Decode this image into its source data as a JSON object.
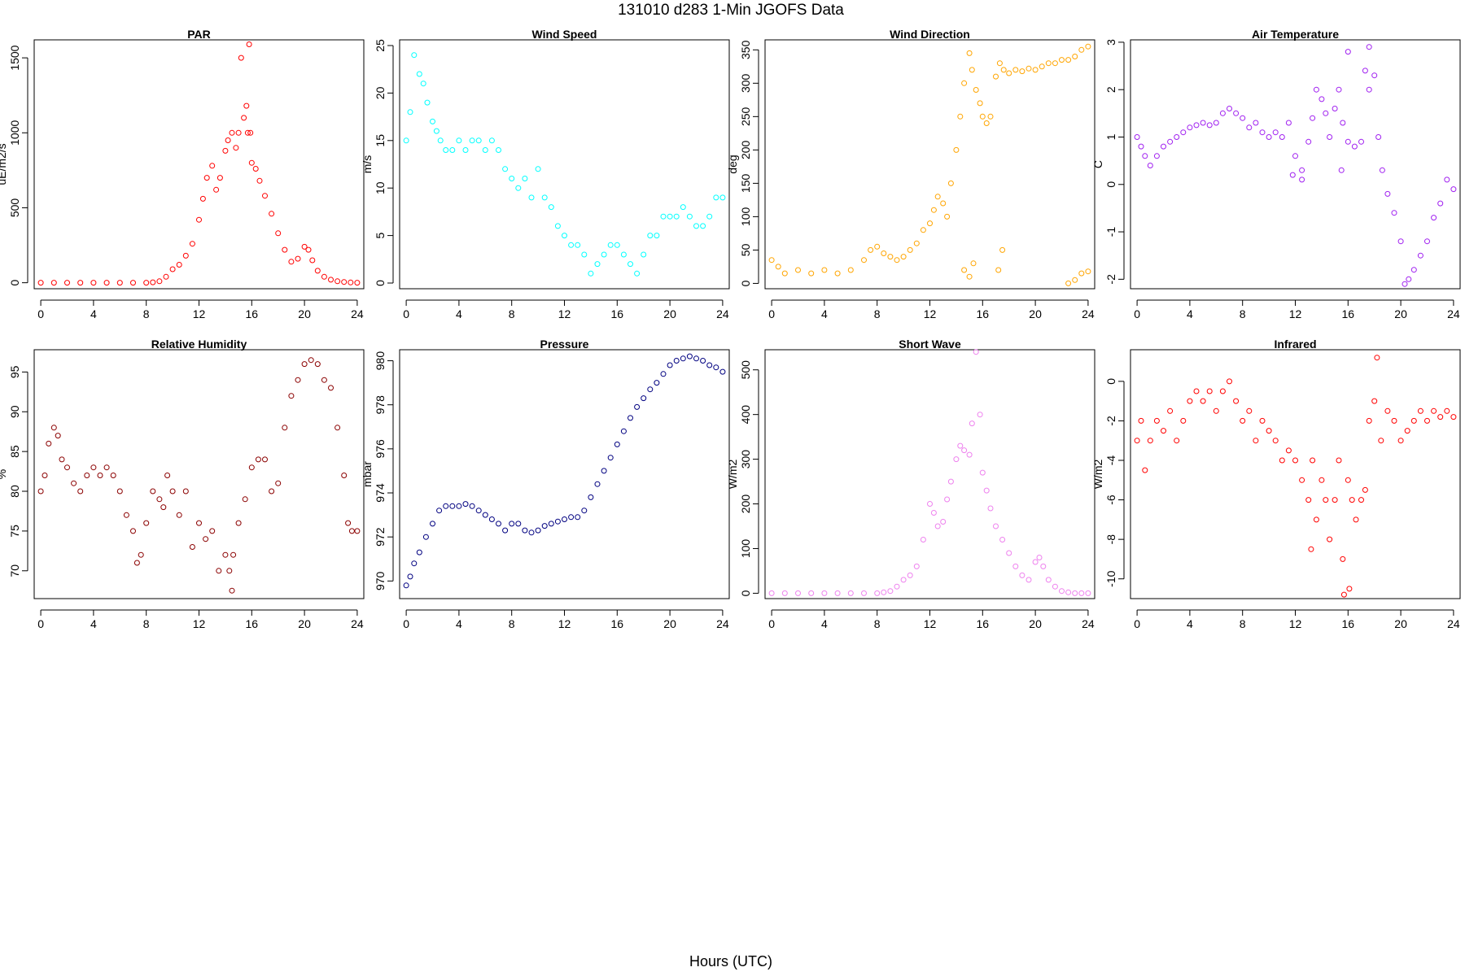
{
  "figure": {
    "title": "131010   d283   1-Min  JGOFS Data",
    "xlabel": "Hours (UTC)"
  },
  "chart_data": [
    {
      "type": "scatter",
      "title": "PAR",
      "xlabel": "",
      "ylabel": "uE/m2/s",
      "color": "#ff0000",
      "xlim": [
        -0.5,
        24.5
      ],
      "ylim": [
        -40,
        1620
      ],
      "xticks": [
        0,
        4,
        8,
        12,
        16,
        20,
        24
      ],
      "yticks": [
        0,
        500,
        1000,
        1500
      ],
      "x": [
        0,
        1,
        2,
        3,
        4,
        5,
        6,
        7,
        8,
        8.5,
        9,
        9.5,
        10,
        10.5,
        11,
        11.5,
        12,
        12.3,
        12.6,
        13,
        13.3,
        13.6,
        14,
        14.2,
        14.5,
        14.8,
        15,
        15.2,
        15.4,
        15.6,
        15.7,
        15.8,
        15.9,
        16,
        16.3,
        16.6,
        17,
        17.5,
        18,
        18.5,
        19,
        19.5,
        20,
        20.3,
        20.6,
        21,
        21.5,
        22,
        22.5,
        23,
        23.5,
        24
      ],
      "y": [
        0,
        0,
        0,
        0,
        0,
        0,
        0,
        0,
        0,
        3,
        10,
        40,
        90,
        120,
        180,
        260,
        420,
        560,
        700,
        780,
        620,
        700,
        880,
        950,
        1000,
        900,
        1000,
        1500,
        1100,
        1180,
        1000,
        1590,
        1000,
        800,
        760,
        680,
        580,
        460,
        330,
        220,
        140,
        160,
        240,
        220,
        150,
        80,
        40,
        20,
        10,
        5,
        2,
        0
      ]
    },
    {
      "type": "scatter",
      "title": "Wind Speed",
      "xlabel": "",
      "ylabel": "m/s",
      "color": "#00ffff",
      "xlim": [
        -0.5,
        24.5
      ],
      "ylim": [
        -0.6,
        25.6
      ],
      "xticks": [
        0,
        4,
        8,
        12,
        16,
        20,
        24
      ],
      "yticks": [
        0,
        5,
        10,
        15,
        20,
        25
      ],
      "x": [
        0,
        0.3,
        0.6,
        1,
        1.3,
        1.6,
        2,
        2.3,
        2.6,
        3,
        3.5,
        4,
        4.5,
        5,
        5.5,
        6,
        6.5,
        7,
        7.5,
        8,
        8.5,
        9,
        9.5,
        10,
        10.5,
        11,
        11.5,
        12,
        12.5,
        13,
        13.5,
        14,
        14.5,
        15,
        15.5,
        16,
        16.5,
        17,
        17.5,
        18,
        18.5,
        19,
        19.5,
        20,
        20.5,
        21,
        21.5,
        22,
        22.5,
        23,
        23.5,
        24
      ],
      "y": [
        15,
        18,
        24,
        22,
        21,
        19,
        17,
        16,
        15,
        14,
        14,
        15,
        14,
        15,
        15,
        14,
        15,
        14,
        12,
        11,
        10,
        11,
        9,
        12,
        9,
        8,
        6,
        5,
        4,
        4,
        3,
        1,
        2,
        3,
        4,
        4,
        3,
        2,
        1,
        3,
        5,
        5,
        7,
        7,
        7,
        8,
        7,
        6,
        6,
        7,
        9,
        9
      ]
    },
    {
      "type": "scatter",
      "title": "Wind Direction",
      "xlabel": "",
      "ylabel": "deg",
      "color": "#ffa500",
      "xlim": [
        -0.5,
        24.5
      ],
      "ylim": [
        -8,
        365
      ],
      "xticks": [
        0,
        4,
        8,
        12,
        16,
        20,
        24
      ],
      "yticks": [
        0,
        50,
        100,
        150,
        200,
        250,
        300,
        350
      ],
      "x": [
        0,
        0.5,
        1,
        2,
        3,
        4,
        5,
        6,
        7,
        7.5,
        8,
        8.5,
        9,
        9.5,
        10,
        10.5,
        11,
        11.5,
        12,
        12.3,
        12.6,
        13,
        13.3,
        13.6,
        14,
        14.3,
        14.6,
        15,
        15.2,
        15.5,
        15.8,
        16,
        16.3,
        16.6,
        17,
        17.3,
        17.6,
        18,
        18.5,
        19,
        19.5,
        20,
        20.5,
        21,
        21.5,
        22,
        22.5,
        23,
        23.5,
        24,
        22.5,
        23,
        23.5,
        24,
        17.2,
        17.5,
        14.6,
        15,
        15.3
      ],
      "y": [
        35,
        25,
        15,
        20,
        15,
        20,
        15,
        20,
        35,
        50,
        55,
        45,
        40,
        35,
        40,
        50,
        60,
        80,
        90,
        110,
        130,
        120,
        100,
        150,
        200,
        250,
        300,
        345,
        320,
        290,
        270,
        250,
        240,
        250,
        310,
        330,
        320,
        315,
        320,
        318,
        322,
        320,
        325,
        330,
        330,
        335,
        335,
        340,
        350,
        355,
        0,
        5,
        15,
        18,
        20,
        50,
        20,
        10,
        30
      ]
    },
    {
      "type": "scatter",
      "title": "Air Temperature",
      "xlabel": "",
      "ylabel": "C",
      "color": "#a020f0",
      "xlim": [
        -0.5,
        24.5
      ],
      "ylim": [
        -2.2,
        3.05
      ],
      "xticks": [
        0,
        4,
        8,
        12,
        16,
        20,
        24
      ],
      "yticks": [
        -2,
        -1,
        0,
        1,
        2,
        3
      ],
      "x": [
        0,
        0.3,
        0.6,
        1,
        1.5,
        2,
        2.5,
        3,
        3.5,
        4,
        4.5,
        5,
        5.5,
        6,
        6.5,
        7,
        7.5,
        8,
        8.5,
        9,
        9.5,
        10,
        10.5,
        11,
        11.5,
        12,
        12.5,
        13,
        13.3,
        13.6,
        14,
        14.3,
        14.6,
        15,
        15.3,
        15.6,
        16,
        16.5,
        17,
        17.3,
        17.6,
        18,
        18.3,
        18.6,
        19,
        19.5,
        20,
        20.3,
        20.6,
        21,
        21.5,
        22,
        22.5,
        23,
        23.5,
        24,
        11.8,
        12.5,
        15.5,
        16,
        17.6
      ],
      "y": [
        1.0,
        0.8,
        0.6,
        0.4,
        0.6,
        0.8,
        0.9,
        1.0,
        1.1,
        1.2,
        1.25,
        1.3,
        1.25,
        1.3,
        1.5,
        1.6,
        1.5,
        1.4,
        1.2,
        1.3,
        1.1,
        1.0,
        1.1,
        1.0,
        1.3,
        0.6,
        0.3,
        0.9,
        1.4,
        2.0,
        1.8,
        1.5,
        1.0,
        1.6,
        2.0,
        1.3,
        0.9,
        0.8,
        0.9,
        2.4,
        2.9,
        2.3,
        1.0,
        0.3,
        -0.2,
        -0.6,
        -1.2,
        -2.1,
        -2.0,
        -1.8,
        -1.5,
        -1.2,
        -0.7,
        -0.4,
        0.1,
        -0.1,
        0.2,
        0.1,
        0.3,
        2.8,
        2.0
      ]
    },
    {
      "type": "scatter",
      "title": "Relative Humidity",
      "xlabel": "",
      "ylabel": "%",
      "color": "#8b0000",
      "xlim": [
        -0.5,
        24.5
      ],
      "ylim": [
        66.5,
        97.8
      ],
      "xticks": [
        0,
        4,
        8,
        12,
        16,
        20,
        24
      ],
      "yticks": [
        70,
        75,
        80,
        85,
        90,
        95
      ],
      "x": [
        0,
        0.3,
        0.6,
        1,
        1.3,
        1.6,
        2,
        2.5,
        3,
        3.5,
        4,
        4.5,
        5,
        5.5,
        6,
        6.5,
        7,
        7.3,
        7.6,
        8,
        8.5,
        9,
        9.3,
        9.6,
        10,
        10.5,
        11,
        11.5,
        12,
        12.5,
        13,
        13.5,
        14,
        14.3,
        14.6,
        15,
        15.5,
        16,
        16.5,
        17,
        17.5,
        18,
        18.5,
        19,
        19.5,
        20,
        20.5,
        21,
        21.5,
        22,
        22.5,
        23,
        23.3,
        23.6,
        24,
        14.5
      ],
      "y": [
        80,
        82,
        86,
        88,
        87,
        84,
        83,
        81,
        80,
        82,
        83,
        82,
        83,
        82,
        80,
        77,
        75,
        71,
        72,
        76,
        80,
        79,
        78,
        82,
        80,
        77,
        80,
        73,
        76,
        74,
        75,
        70,
        72,
        70,
        72,
        76,
        79,
        83,
        84,
        84,
        80,
        81,
        88,
        92,
        94,
        96,
        96.5,
        96,
        94,
        93,
        88,
        82,
        76,
        75,
        75,
        67.5
      ]
    },
    {
      "type": "scatter",
      "title": "Pressure",
      "xlabel": "",
      "ylabel": "mbar",
      "color": "#000080",
      "xlim": [
        -0.5,
        24.5
      ],
      "ylim": [
        969.2,
        980.5
      ],
      "xticks": [
        0,
        4,
        8,
        12,
        16,
        20,
        24
      ],
      "yticks": [
        970,
        972,
        974,
        976,
        978,
        980
      ],
      "x": [
        0,
        0.3,
        0.6,
        1,
        1.5,
        2,
        2.5,
        3,
        3.5,
        4,
        4.5,
        5,
        5.5,
        6,
        6.5,
        7,
        7.5,
        8,
        8.5,
        9,
        9.5,
        10,
        10.5,
        11,
        11.5,
        12,
        12.5,
        13,
        13.5,
        14,
        14.5,
        15,
        15.5,
        16,
        16.5,
        17,
        17.5,
        18,
        18.5,
        19,
        19.5,
        20,
        20.5,
        21,
        21.5,
        22,
        22.5,
        23,
        23.5,
        24
      ],
      "y": [
        969.8,
        970.2,
        970.8,
        971.3,
        972.0,
        972.6,
        973.2,
        973.4,
        973.4,
        973.4,
        973.5,
        973.4,
        973.2,
        973.0,
        972.8,
        972.6,
        972.3,
        972.6,
        972.6,
        972.3,
        972.2,
        972.3,
        972.5,
        972.6,
        972.7,
        972.8,
        972.9,
        972.9,
        973.2,
        973.8,
        974.4,
        975.0,
        975.6,
        976.2,
        976.8,
        977.4,
        977.9,
        978.3,
        978.7,
        979.0,
        979.4,
        979.8,
        980.0,
        980.1,
        980.2,
        980.1,
        980.0,
        979.8,
        979.7,
        979.5
      ]
    },
    {
      "type": "scatter",
      "title": "Short Wave",
      "xlabel": "",
      "ylabel": "W/m2",
      "color": "#ee82ee",
      "xlim": [
        -0.5,
        24.5
      ],
      "ylim": [
        -12,
        545
      ],
      "xticks": [
        0,
        4,
        8,
        12,
        16,
        20,
        24
      ],
      "yticks": [
        0,
        100,
        200,
        300,
        400,
        500
      ],
      "x": [
        0,
        1,
        2,
        3,
        4,
        5,
        6,
        7,
        8,
        8.5,
        9,
        9.5,
        10,
        10.5,
        11,
        11.5,
        12,
        12.3,
        12.6,
        13,
        13.3,
        13.6,
        14,
        14.3,
        14.6,
        15,
        15.2,
        15.5,
        15.8,
        16,
        16.3,
        16.6,
        17,
        17.5,
        18,
        18.5,
        19,
        19.5,
        20,
        20.3,
        20.6,
        21,
        21.5,
        22,
        22.5,
        23,
        23.5,
        24
      ],
      "y": [
        0,
        0,
        0,
        0,
        0,
        0,
        0,
        0,
        0,
        2,
        5,
        15,
        30,
        40,
        60,
        120,
        200,
        180,
        150,
        160,
        210,
        250,
        300,
        330,
        320,
        310,
        380,
        540,
        400,
        270,
        230,
        190,
        150,
        120,
        90,
        60,
        40,
        30,
        70,
        80,
        60,
        30,
        15,
        5,
        2,
        0,
        0,
        0
      ]
    },
    {
      "type": "scatter",
      "title": "Infrared",
      "xlabel": "",
      "ylabel": "W/m2",
      "color": "#ff0000",
      "xlim": [
        -0.5,
        24.5
      ],
      "ylim": [
        -11,
        1.6
      ],
      "xticks": [
        0,
        4,
        8,
        12,
        16,
        20,
        24
      ],
      "yticks": [
        -10,
        -8,
        -6,
        -4,
        -2,
        0
      ],
      "x": [
        0,
        0.3,
        0.6,
        1,
        1.5,
        2,
        2.5,
        3,
        3.5,
        4,
        4.5,
        5,
        5.5,
        6,
        6.5,
        7,
        7.5,
        8,
        8.5,
        9,
        9.5,
        10,
        10.5,
        11,
        11.5,
        12,
        12.5,
        13,
        13.3,
        13.6,
        14,
        14.3,
        14.6,
        15,
        15.3,
        15.6,
        16,
        16.3,
        16.6,
        17,
        17.3,
        17.6,
        18,
        18.5,
        19,
        19.5,
        20,
        20.5,
        21,
        21.5,
        22,
        22.5,
        23,
        23.5,
        24,
        15.7,
        16.1,
        13.2,
        18.2
      ],
      "y": [
        -3,
        -2,
        -4.5,
        -3,
        -2,
        -2.5,
        -1.5,
        -3,
        -2,
        -1,
        -0.5,
        -1,
        -0.5,
        -1.5,
        -0.5,
        0,
        -1,
        -2,
        -1.5,
        -3,
        -2,
        -2.5,
        -3,
        -4,
        -3.5,
        -4,
        -5,
        -6,
        -4,
        -7,
        -5,
        -6,
        -8,
        -6,
        -4,
        -9,
        -5,
        -6,
        -7,
        -6,
        -5.5,
        -2,
        -1,
        -3,
        -1.5,
        -2,
        -3,
        -2.5,
        -2,
        -1.5,
        -2,
        -1.5,
        -1.8,
        -1.5,
        -1.8,
        -10.8,
        -10.5,
        -8.5,
        1.2
      ]
    }
  ]
}
